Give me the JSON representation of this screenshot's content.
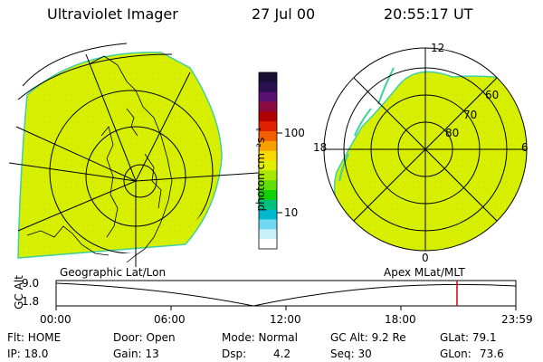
{
  "header": {
    "instrument": "Ultraviolet Imager",
    "date": "27 Jul 00",
    "time": "20:55:17 UT"
  },
  "colors": {
    "image_fill": "#d8f000",
    "image_edge": "#40d0a0",
    "line": "#000000",
    "time_marker": "#e00000"
  },
  "colorbar": {
    "label": "photon cm⁻²s⁻¹",
    "tick_100": "100",
    "tick_10": "10",
    "colors": [
      "#1a1033",
      "#2a1050",
      "#5a1070",
      "#8a0a40",
      "#b00000",
      "#e02000",
      "#f06000",
      "#f8a000",
      "#f8d800",
      "#e0f000",
      "#a8e800",
      "#60e000",
      "#10d000",
      "#00c080",
      "#00b8d0",
      "#70d8f0",
      "#c8f0f8",
      "#ffffff"
    ]
  },
  "polar_labels": {
    "mlt_12": "12",
    "mlt_18": "18",
    "mlt_6": "6",
    "mlt_0": "0",
    "lat_60": "60",
    "lat_70": "70",
    "lat_80": "80"
  },
  "projections": {
    "left": "Geographic Lat/Lon",
    "right": "Apex MLat/MLT"
  },
  "timeline": {
    "ylabel": "GC Alt",
    "y_high": "9.0",
    "y_low": "1.8",
    "ticks": [
      "00:00",
      "06:00",
      "12:00",
      "18:00",
      "23:59"
    ],
    "current_fraction": 0.872
  },
  "status": {
    "flt": "Flt: HOME",
    "ip": "IP: 18.0",
    "door": "Door: Open",
    "gain": "Gain: 13",
    "mode": "Mode: Normal",
    "dsp_label": "Dsp:",
    "dsp_value": "4.2",
    "gcalt": "GC Alt: 9.2 Re",
    "seq": "Seq: 30",
    "glat": "GLat: 79.1",
    "glon_label": "GLon:",
    "glon_value": "73.6"
  }
}
